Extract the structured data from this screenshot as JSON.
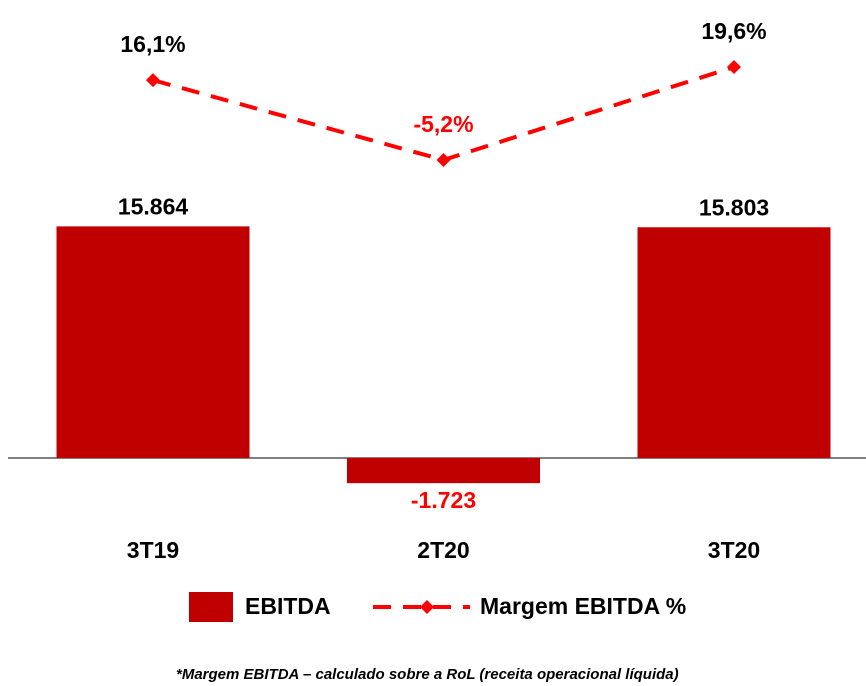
{
  "chart_data": {
    "type": "bar",
    "categories": [
      "3T19",
      "2T20",
      "3T20"
    ],
    "series": [
      {
        "name": "EBITDA",
        "type": "bar",
        "color": "#c00000",
        "axis": "y",
        "values": [
          15864,
          -1723,
          15803
        ],
        "value_labels": [
          "15.864",
          "-1.723",
          "15.803"
        ]
      },
      {
        "name": "Margem EBITDA %",
        "type": "line",
        "color": "#ff0000",
        "axis": "y2",
        "values": [
          16.1,
          -5.2,
          19.6
        ],
        "value_labels": [
          "16,1%",
          "-5,2%",
          "19,6%"
        ]
      }
    ],
    "ylim": [
      -10000,
      20000
    ],
    "y2lim": [
      -10,
      30
    ],
    "legend": "bottom",
    "footnote": "*Margem EBITDA – calculado sobre a RoL (receita operacional líquida)"
  }
}
